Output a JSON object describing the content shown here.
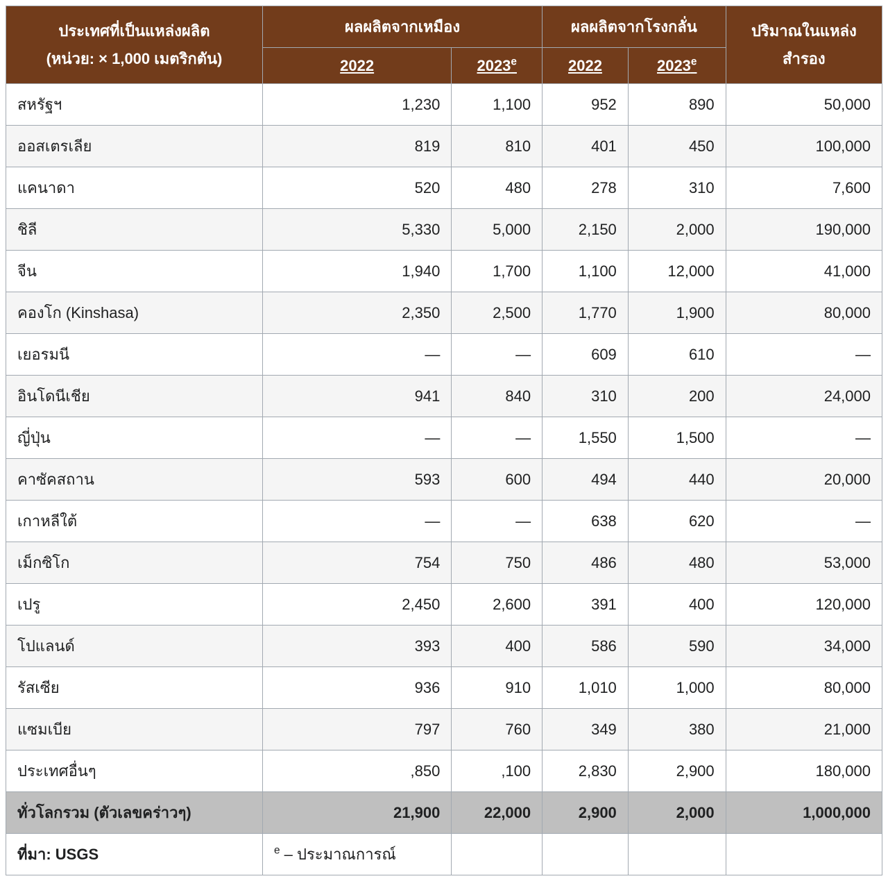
{
  "table": {
    "type": "table",
    "colors": {
      "header_bg": "#723c1b",
      "header_text": "#ffffff",
      "border": "#a2a9b1",
      "row_odd": "#ffffff",
      "row_even": "#f5f5f5",
      "total_bg": "#bfbfbf",
      "text": "#202122"
    },
    "header": {
      "country_line1": "ประเทศที่เป็นแหล่งผลิต",
      "country_line2": "(หน่วย: × 1,000 เมตริกตัน)",
      "mine": "ผลผลิตจากเหมือง",
      "refinery": "ผลผลิตจากโรงกลั่น",
      "reserves_line1": "ปริมาณในแหล่ง",
      "reserves_line2": "สำรอง",
      "y2022": "2022",
      "y2023e": "2023",
      "e_sup": "e"
    },
    "rows": [
      {
        "country": "สหรัฐฯ",
        "mine2022": "1,230",
        "mine2023": "1,100",
        "ref2022": "952",
        "ref2023": "890",
        "reserves": "50,000"
      },
      {
        "country": "ออสเตรเลีย",
        "mine2022": "819",
        "mine2023": "810",
        "ref2022": "401",
        "ref2023": "450",
        "reserves": "100,000"
      },
      {
        "country": "แคนาดา",
        "mine2022": "520",
        "mine2023": "480",
        "ref2022": "278",
        "ref2023": "310",
        "reserves": "7,600"
      },
      {
        "country": "ชิลี",
        "mine2022": "5,330",
        "mine2023": "5,000",
        "ref2022": "2,150",
        "ref2023": "2,000",
        "reserves": "190,000"
      },
      {
        "country": "จีน",
        "mine2022": "1,940",
        "mine2023": "1,700",
        "ref2022": "1,100",
        "ref2023": "12,000",
        "reserves": "41,000"
      },
      {
        "country": "คองโก (Kinshasa)",
        "mine2022": "2,350",
        "mine2023": "2,500",
        "ref2022": "1,770",
        "ref2023": "1,900",
        "reserves": "80,000"
      },
      {
        "country": "เยอรมนี",
        "mine2022": "—",
        "mine2023": "—",
        "ref2022": "609",
        "ref2023": "610",
        "reserves": "—"
      },
      {
        "country": "อินโดนีเชีย",
        "mine2022": "941",
        "mine2023": "840",
        "ref2022": "310",
        "ref2023": "200",
        "reserves": "24,000"
      },
      {
        "country": "ญี่ปุ่น",
        "mine2022": "—",
        "mine2023": "—",
        "ref2022": "1,550",
        "ref2023": "1,500",
        "reserves": "—"
      },
      {
        "country": "คาซัคสถาน",
        "mine2022": "593",
        "mine2023": "600",
        "ref2022": "494",
        "ref2023": "440",
        "reserves": "20,000"
      },
      {
        "country": "เกาหลีใต้",
        "mine2022": "—",
        "mine2023": "—",
        "ref2022": "638",
        "ref2023": "620",
        "reserves": "—"
      },
      {
        "country": "เม็กซิโก",
        "mine2022": "754",
        "mine2023": "750",
        "ref2022": "486",
        "ref2023": "480",
        "reserves": "53,000"
      },
      {
        "country": "เปรู",
        "mine2022": "2,450",
        "mine2023": "2,600",
        "ref2022": "391",
        "ref2023": "400",
        "reserves": "120,000"
      },
      {
        "country": "โปแลนด์",
        "mine2022": "393",
        "mine2023": "400",
        "ref2022": "586",
        "ref2023": "590",
        "reserves": "34,000"
      },
      {
        "country": "รัสเซีย",
        "mine2022": "936",
        "mine2023": "910",
        "ref2022": "1,010",
        "ref2023": "1,000",
        "reserves": "80,000"
      },
      {
        "country": "แซมเบีย",
        "mine2022": "797",
        "mine2023": "760",
        "ref2022": "349",
        "ref2023": "380",
        "reserves": "21,000"
      },
      {
        "country": "ประเทศอื่นๆ",
        "mine2022": ",850",
        "mine2023": ",100",
        "ref2022": "2,830",
        "ref2023": "2,900",
        "reserves": "180,000"
      }
    ],
    "total": {
      "label": "ทั่วโลกรวม (ตัวเลขคร่าวๆ)",
      "mine2022": "21,900",
      "mine2023": "22,000",
      "ref2022": "2,900",
      "ref2023": "2,000",
      "reserves": "1,000,000"
    },
    "source": {
      "label": "ที่มา: USGS",
      "note_sup": "e",
      "note_text": " – ประมาณการณ์"
    }
  }
}
